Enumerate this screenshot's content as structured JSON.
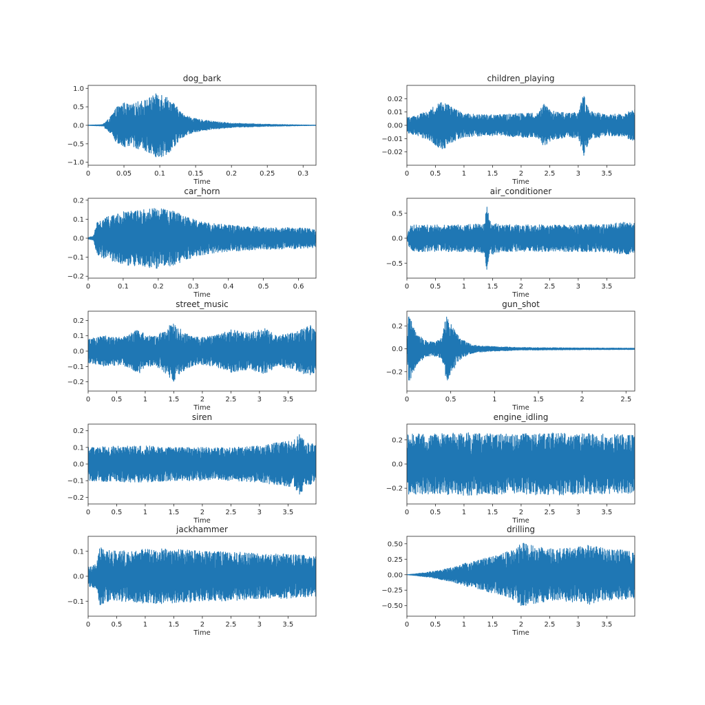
{
  "figure": {
    "background": "#ffffff",
    "wave_color": "#1f77b4",
    "axes_color": "#262626"
  },
  "chart_data": [
    {
      "type": "line",
      "title": "dog_bark",
      "xlabel": "Time",
      "ylabel": "",
      "xlim": [
        0,
        0.318
      ],
      "ylim": [
        -1.08,
        1.08
      ],
      "xticks": [
        0,
        0.05,
        0.1,
        0.15,
        0.2,
        0.25,
        0.3
      ],
      "xtick_labels": [
        "0",
        "0.05",
        "0.1",
        "0.15",
        "0.2",
        "0.25",
        "0.3"
      ],
      "yticks": [
        -1.0,
        -0.5,
        0.0,
        0.5,
        1.0
      ],
      "ytick_labels": [
        "−1.0",
        "−0.5",
        "0.0",
        "0.5",
        "1.0"
      ],
      "series": [
        {
          "color": "#1f77b4",
          "envelope_x": [
            0,
            0.02,
            0.03,
            0.04,
            0.05,
            0.06,
            0.07,
            0.08,
            0.09,
            0.1,
            0.105,
            0.11,
            0.12,
            0.13,
            0.14,
            0.15,
            0.17,
            0.2,
            0.25,
            0.3,
            0.318
          ],
          "envelope_y": [
            0.005,
            0.02,
            0.2,
            0.5,
            0.62,
            0.55,
            0.65,
            0.7,
            0.8,
            0.92,
            0.85,
            0.78,
            0.6,
            0.35,
            0.25,
            0.18,
            0.12,
            0.06,
            0.03,
            0.01,
            0.005
          ]
        }
      ]
    },
    {
      "type": "line",
      "title": "children_playing",
      "xlabel": "Time",
      "ylabel": "",
      "xlim": [
        0,
        3.99
      ],
      "ylim": [
        -0.03,
        0.03
      ],
      "xticks": [
        0,
        0.5,
        1,
        1.5,
        2,
        2.5,
        3,
        3.5
      ],
      "xtick_labels": [
        "0",
        "0.5",
        "1",
        "1.5",
        "2",
        "2.5",
        "3",
        "3.5"
      ],
      "yticks": [
        -0.02,
        -0.01,
        0.0,
        0.01,
        0.02
      ],
      "ytick_labels": [
        "−0.02",
        "−0.01",
        "0.00",
        "0.01",
        "0.02"
      ],
      "series": [
        {
          "color": "#1f77b4",
          "envelope_x": [
            0,
            0.2,
            0.4,
            0.6,
            0.7,
            0.8,
            1.0,
            1.3,
            1.6,
            2.0,
            2.3,
            2.4,
            2.5,
            2.8,
            3.0,
            3.1,
            3.2,
            3.5,
            3.8,
            3.99
          ],
          "envelope_y": [
            0.006,
            0.008,
            0.012,
            0.018,
            0.017,
            0.013,
            0.009,
            0.008,
            0.008,
            0.009,
            0.01,
            0.016,
            0.012,
            0.009,
            0.01,
            0.024,
            0.011,
            0.008,
            0.009,
            0.012
          ]
        }
      ]
    },
    {
      "type": "line",
      "title": "car_horn",
      "xlabel": "Time",
      "ylabel": "",
      "xlim": [
        0,
        0.65
      ],
      "ylim": [
        -0.21,
        0.21
      ],
      "xticks": [
        0,
        0.1,
        0.2,
        0.3,
        0.4,
        0.5,
        0.6
      ],
      "xtick_labels": [
        "0",
        "0.1",
        "0.2",
        "0.3",
        "0.4",
        "0.5",
        "0.6"
      ],
      "yticks": [
        -0.2,
        -0.1,
        0.0,
        0.1,
        0.2
      ],
      "ytick_labels": [
        "−0.2",
        "−0.1",
        "0.0",
        "0.1",
        "0.2"
      ],
      "series": [
        {
          "color": "#1f77b4",
          "envelope_x": [
            0,
            0.015,
            0.025,
            0.05,
            0.1,
            0.15,
            0.2,
            0.25,
            0.3,
            0.35,
            0.4,
            0.5,
            0.6,
            0.65
          ],
          "envelope_y": [
            0.005,
            0.01,
            0.09,
            0.11,
            0.14,
            0.15,
            0.16,
            0.14,
            0.1,
            0.08,
            0.07,
            0.06,
            0.055,
            0.05
          ]
        }
      ]
    },
    {
      "type": "line",
      "title": "air_conditioner",
      "xlabel": "Time",
      "ylabel": "",
      "xlim": [
        0,
        3.99
      ],
      "ylim": [
        -0.8,
        0.8
      ],
      "xticks": [
        0,
        0.5,
        1,
        1.5,
        2,
        2.5,
        3,
        3.5
      ],
      "xtick_labels": [
        "0",
        "0.5",
        "1",
        "1.5",
        "2",
        "2.5",
        "3",
        "3.5"
      ],
      "yticks": [
        -0.5,
        0.0,
        0.5
      ],
      "ytick_labels": [
        "−0.5",
        "0.0",
        "0.5"
      ],
      "series": [
        {
          "color": "#1f77b4",
          "envelope_x": [
            0,
            0.05,
            0.1,
            0.5,
            1.0,
            1.35,
            1.4,
            1.45,
            1.6,
            2.0,
            2.5,
            3.0,
            3.5,
            3.8,
            3.99
          ],
          "envelope_y": [
            0.02,
            0.25,
            0.27,
            0.27,
            0.27,
            0.3,
            0.68,
            0.35,
            0.28,
            0.27,
            0.27,
            0.27,
            0.28,
            0.33,
            0.3
          ]
        }
      ]
    },
    {
      "type": "line",
      "title": "street_music",
      "xlabel": "Time",
      "ylabel": "",
      "xlim": [
        0,
        3.99
      ],
      "ylim": [
        -0.26,
        0.26
      ],
      "xticks": [
        0,
        0.5,
        1,
        1.5,
        2,
        2.5,
        3,
        3.5
      ],
      "xtick_labels": [
        "0",
        "0.5",
        "1",
        "1.5",
        "2",
        "2.5",
        "3",
        "3.5"
      ],
      "yticks": [
        -0.2,
        -0.1,
        0.0,
        0.1,
        0.2
      ],
      "ytick_labels": [
        "−0.2",
        "−0.1",
        "0.0",
        "0.1",
        "0.2"
      ],
      "series": [
        {
          "color": "#1f77b4",
          "envelope_x": [
            0,
            0.3,
            0.6,
            0.9,
            1.0,
            1.2,
            1.5,
            1.55,
            1.8,
            2.0,
            2.3,
            2.5,
            2.8,
            3.1,
            3.3,
            3.6,
            3.9,
            3.99
          ],
          "envelope_y": [
            0.08,
            0.1,
            0.09,
            0.15,
            0.1,
            0.1,
            0.2,
            0.16,
            0.1,
            0.09,
            0.11,
            0.14,
            0.12,
            0.15,
            0.1,
            0.12,
            0.17,
            0.12
          ]
        }
      ]
    },
    {
      "type": "line",
      "title": "gun_shot",
      "xlabel": "Time",
      "ylabel": "",
      "xlim": [
        0,
        2.6
      ],
      "ylim": [
        -0.37,
        0.33
      ],
      "xticks": [
        0,
        0.5,
        1,
        1.5,
        2,
        2.5
      ],
      "xtick_labels": [
        "0",
        "0.5",
        "1",
        "1.5",
        "2",
        "2.5"
      ],
      "yticks": [
        -0.2,
        0.0,
        0.2
      ],
      "ytick_labels": [
        "−0.2",
        "0.0",
        "0.2"
      ],
      "series": [
        {
          "color": "#1f77b4",
          "envelope_x": [
            0,
            0.02,
            0.05,
            0.1,
            0.2,
            0.3,
            0.4,
            0.45,
            0.5,
            0.6,
            0.7,
            0.8,
            1.0,
            1.3,
            1.6,
            2.0,
            2.6
          ],
          "envelope_y": [
            0.05,
            0.3,
            0.25,
            0.15,
            0.08,
            0.06,
            0.1,
            0.3,
            0.22,
            0.1,
            0.05,
            0.03,
            0.02,
            0.012,
            0.01,
            0.008,
            0.006
          ]
        }
      ]
    },
    {
      "type": "line",
      "title": "siren",
      "xlabel": "Time",
      "ylabel": "",
      "xlim": [
        0,
        3.99
      ],
      "ylim": [
        -0.24,
        0.24
      ],
      "xticks": [
        0,
        0.5,
        1,
        1.5,
        2,
        2.5,
        3,
        3.5
      ],
      "xtick_labels": [
        "0",
        "0.5",
        "1",
        "1.5",
        "2",
        "2.5",
        "3",
        "3.5"
      ],
      "yticks": [
        -0.2,
        -0.1,
        0.0,
        0.1,
        0.2
      ],
      "ytick_labels": [
        "−0.2",
        "−0.1",
        "0.0",
        "0.1",
        "0.2"
      ],
      "series": [
        {
          "color": "#1f77b4",
          "envelope_x": [
            0,
            0.5,
            1.0,
            1.5,
            2.0,
            2.5,
            3.0,
            3.3,
            3.6,
            3.7,
            3.8,
            3.99
          ],
          "envelope_y": [
            0.1,
            0.11,
            0.11,
            0.1,
            0.1,
            0.1,
            0.11,
            0.13,
            0.14,
            0.19,
            0.13,
            0.12
          ]
        }
      ]
    },
    {
      "type": "line",
      "title": "engine_idling",
      "xlabel": "Time",
      "ylabel": "",
      "xlim": [
        0,
        3.99
      ],
      "ylim": [
        -0.33,
        0.33
      ],
      "xticks": [
        0,
        0.5,
        1,
        1.5,
        2,
        2.5,
        3,
        3.5
      ],
      "xtick_labels": [
        "0",
        "0.5",
        "1",
        "1.5",
        "2",
        "2.5",
        "3",
        "3.5"
      ],
      "yticks": [
        -0.2,
        0.0,
        0.2
      ],
      "ytick_labels": [
        "−0.2",
        "0.0",
        "0.2"
      ],
      "series": [
        {
          "color": "#1f77b4",
          "envelope_x": [
            0,
            0.5,
            1.0,
            1.5,
            2.0,
            2.5,
            3.0,
            3.5,
            3.99
          ],
          "envelope_y": [
            0.25,
            0.25,
            0.26,
            0.25,
            0.25,
            0.26,
            0.25,
            0.25,
            0.24
          ]
        }
      ]
    },
    {
      "type": "line",
      "title": "jackhammer",
      "xlabel": "Time",
      "ylabel": "",
      "xlim": [
        0,
        3.99
      ],
      "ylim": [
        -0.16,
        0.16
      ],
      "xticks": [
        0,
        0.5,
        1,
        1.5,
        2,
        2.5,
        3,
        3.5
      ],
      "xtick_labels": [
        "0",
        "0.5",
        "1",
        "1.5",
        "2",
        "2.5",
        "3",
        "3.5"
      ],
      "yticks": [
        -0.1,
        0.0,
        0.1
      ],
      "ytick_labels": [
        "−0.1",
        "0.0",
        "0.1"
      ],
      "series": [
        {
          "color": "#1f77b4",
          "envelope_x": [
            0,
            0.15,
            0.2,
            0.25,
            0.5,
            1.0,
            1.5,
            2.0,
            2.5,
            3.0,
            3.5,
            3.99
          ],
          "envelope_y": [
            0.04,
            0.05,
            0.12,
            0.11,
            0.1,
            0.11,
            0.11,
            0.1,
            0.1,
            0.09,
            0.09,
            0.08
          ]
        }
      ]
    },
    {
      "type": "line",
      "title": "drilling",
      "xlabel": "Time",
      "ylabel": "",
      "xlim": [
        0,
        3.99
      ],
      "ylim": [
        -0.67,
        0.62
      ],
      "xticks": [
        0,
        0.5,
        1,
        1.5,
        2,
        2.5,
        3,
        3.5
      ],
      "xtick_labels": [
        "0",
        "0.5",
        "1",
        "1.5",
        "2",
        "2.5",
        "3",
        "3.5"
      ],
      "yticks": [
        -0.5,
        -0.25,
        0.0,
        0.25,
        0.5
      ],
      "ytick_labels": [
        "−0.50",
        "−0.25",
        "0.00",
        "0.25",
        "0.50"
      ],
      "series": [
        {
          "color": "#1f77b4",
          "envelope_x": [
            0,
            0.2,
            0.5,
            0.8,
            1.0,
            1.3,
            1.6,
            1.9,
            2.0,
            2.3,
            2.6,
            3.0,
            3.2,
            3.5,
            3.8,
            3.99
          ],
          "envelope_y": [
            0.0,
            0.02,
            0.06,
            0.12,
            0.18,
            0.25,
            0.32,
            0.42,
            0.52,
            0.45,
            0.42,
            0.45,
            0.48,
            0.42,
            0.4,
            0.38
          ]
        }
      ]
    }
  ]
}
